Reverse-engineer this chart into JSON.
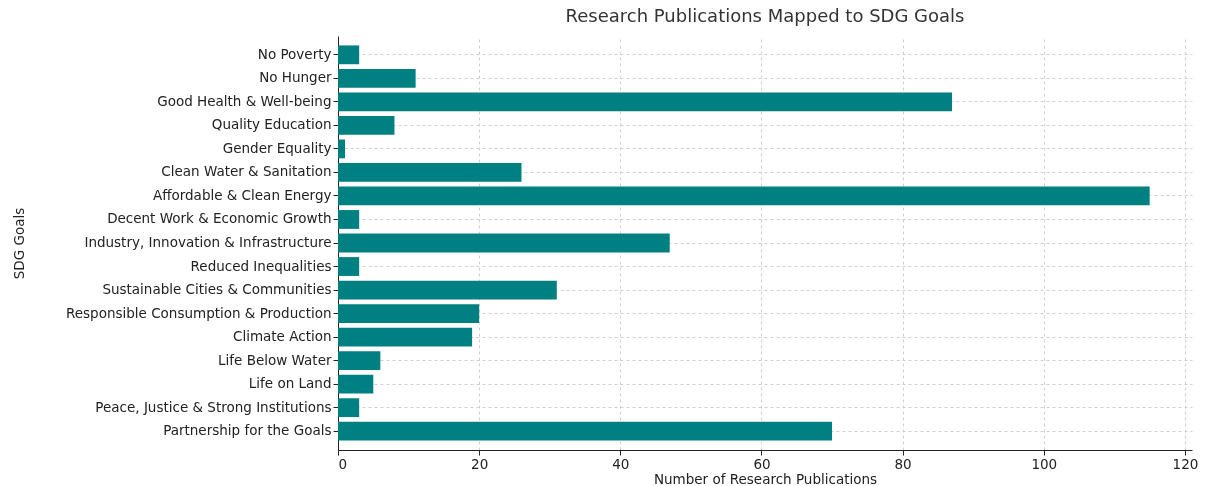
{
  "chart_data": {
    "type": "bar",
    "orientation": "horizontal",
    "title": "Research Publications Mapped to SDG Goals",
    "xlabel": "Number of Research Publications",
    "ylabel": "SDG Goals",
    "categories": [
      "No Poverty",
      "No Hunger",
      "Good Health & Well-being",
      "Quality Education",
      "Gender Equality",
      "Clean Water & Sanitation",
      "Affordable & Clean Energy",
      "Decent Work & Economic Growth",
      "Industry, Innovation & Infrastructure",
      "Reduced Inequalities",
      "Sustainable Cities & Communities",
      "Responsible Consumption & Production",
      "Climate Action",
      "Life Below Water",
      "Life on Land",
      "Peace, Justice & Strong Institutions",
      "Partnership for the Goals"
    ],
    "values": [
      3,
      11,
      87,
      8,
      1,
      26,
      115,
      3,
      47,
      3,
      31,
      20,
      19,
      6,
      5,
      3,
      70
    ],
    "color": "#008080",
    "xlim": [
      0,
      121
    ],
    "xticks": [
      0,
      20,
      40,
      60,
      80,
      100,
      120
    ],
    "grid": true
  }
}
